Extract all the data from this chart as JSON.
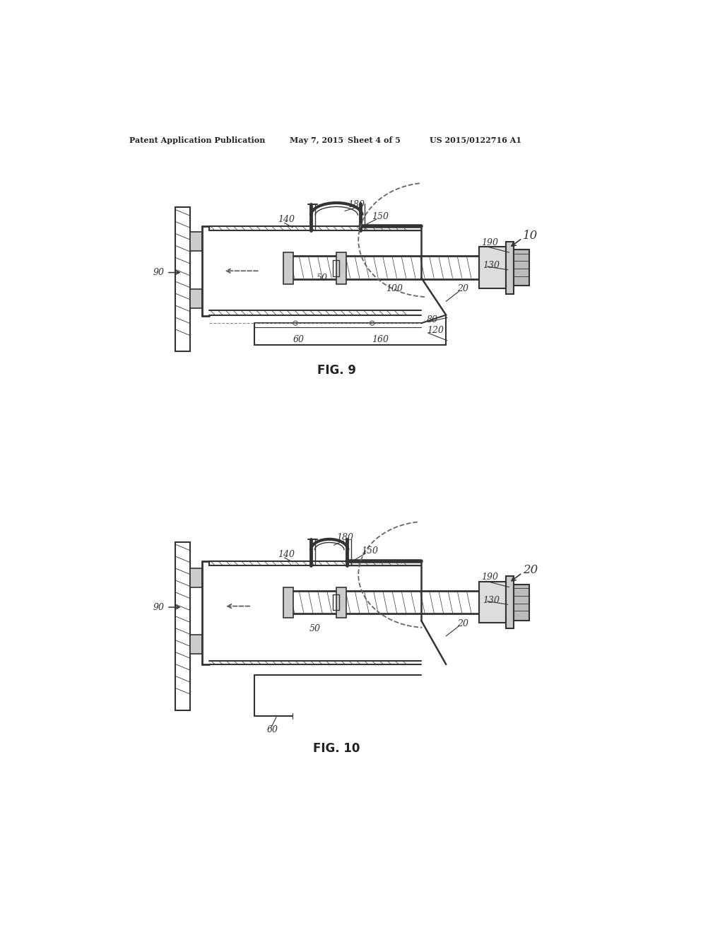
{
  "bg_color": "#ffffff",
  "header_text": "Patent Application Publication",
  "header_date": "May 7, 2015",
  "header_sheet": "Sheet 4 of 5",
  "header_patent": "US 2015/0122716 A1",
  "fig9_label": "FIG. 9",
  "fig10_label": "FIG. 10",
  "line_color": "#333333",
  "dashed_color": "#555555",
  "label_color": "#444444",
  "label_fontsize": 9,
  "header_fontsize": 8,
  "fig_label_fontsize": 11
}
